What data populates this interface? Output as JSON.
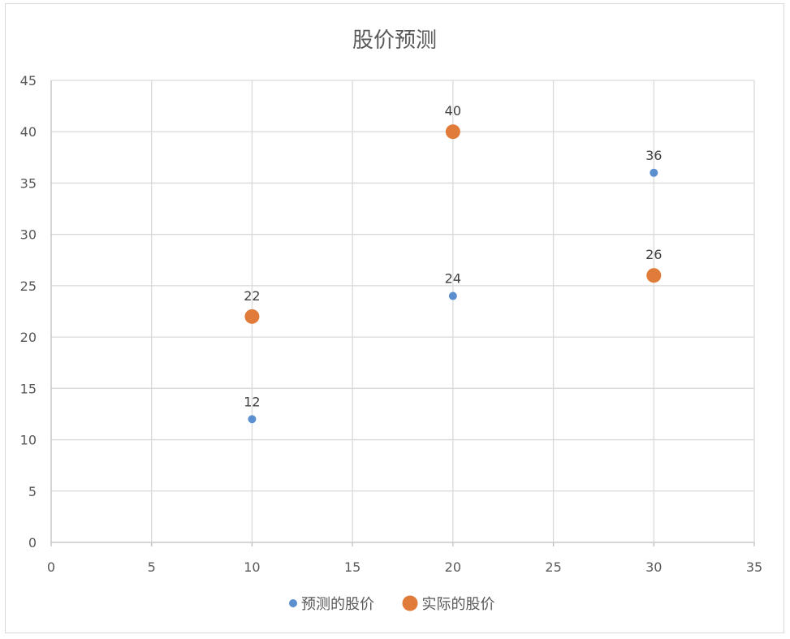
{
  "chart_data": {
    "type": "scatter",
    "title": "股价预测",
    "xlim": [
      0,
      35
    ],
    "ylim": [
      0,
      45
    ],
    "x_ticks": [
      0,
      5,
      10,
      15,
      20,
      25,
      30,
      35
    ],
    "y_ticks": [
      0,
      5,
      10,
      15,
      20,
      25,
      30,
      35,
      40,
      45
    ],
    "grid": true,
    "legend_position": "bottom",
    "series": [
      {
        "name": "预测的股价",
        "color": "#5b8fd0",
        "marker_size": "small",
        "x": [
          10,
          20,
          30
        ],
        "y": [
          12,
          24,
          36
        ]
      },
      {
        "name": "实际的股价",
        "color": "#e07b39",
        "marker_size": "large",
        "x": [
          10,
          20,
          30
        ],
        "y": [
          22,
          40,
          26
        ]
      }
    ]
  }
}
